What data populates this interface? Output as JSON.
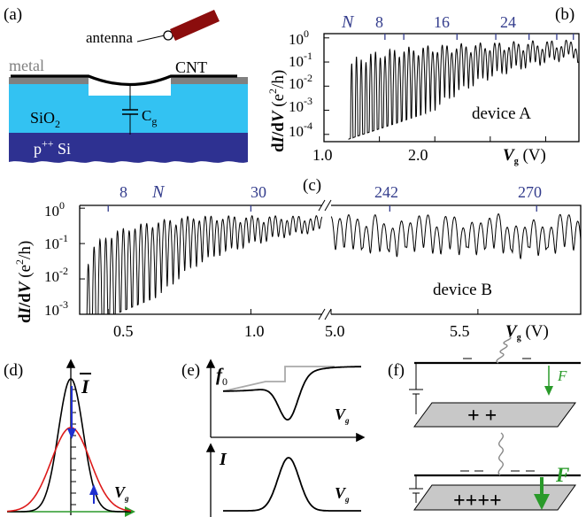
{
  "panels": {
    "a": {
      "label": "(a)",
      "antenna": "antenna",
      "metal": "metal",
      "cnt": "CNT",
      "sio2": "SiO",
      "sio2_sub": "2",
      "si": "p",
      "si_sup": "++",
      "si_tail": " Si",
      "cg": "C",
      "cg_sub": "g",
      "colors": {
        "sio2": "#33c2f2",
        "si": "#2e3191",
        "metal": "#808080",
        "antenna": "#8b0d0d"
      }
    },
    "b": {
      "label": "(b)",
      "device": "device A",
      "n_label": "N",
      "top_ticks": [
        "8",
        "16",
        "24"
      ],
      "x_ticks": [
        "1.0",
        "2.0"
      ],
      "y_ticks": [
        "10",
        "10",
        "10",
        "10",
        "10"
      ],
      "y_exps": [
        "0",
        "-1",
        "-2",
        "-3",
        "-4"
      ]
    },
    "c": {
      "label": "(c)",
      "device": "device B",
      "n_label": "N",
      "top_ticks": [
        "8",
        "30",
        "242",
        "270"
      ],
      "x_ticks": [
        "0.5",
        "1.0",
        "5.0",
        "5.5"
      ],
      "y_ticks": [
        "10",
        "10",
        "10",
        "10"
      ],
      "y_exps": [
        "0",
        "-1",
        "-2",
        "-3"
      ]
    },
    "ylabel": {
      "a": "d",
      "b": "I",
      "c": "/d",
      "d": "V",
      "e": " (e",
      "f": "2",
      "g": "/h)"
    },
    "xlabel": {
      "v": "V",
      "g": "g",
      "unit": " (V)"
    },
    "d": {
      "label": "(d)",
      "ibar": "I",
      "vg": "V",
      "vg_sub": "g"
    },
    "e": {
      "label": "(e)",
      "f0": "f",
      "f0_sub": "0",
      "i": "I",
      "vg": "V",
      "vg_sub": "g"
    },
    "f": {
      "label": "(f)",
      "force": "F",
      "force2": "F",
      "signs_top": "+ +",
      "signs_bottom": "++++"
    }
  },
  "chart_data": [
    {
      "type": "line",
      "panel": "b",
      "xlabel": "Vg (V)",
      "ylabel": "dI/dV (e^2/h)",
      "xlim": [
        1.0,
        3.3
      ],
      "ylim": [
        5e-05,
        1.5
      ],
      "yscale": "log",
      "top_axis": {
        "label": "N",
        "ticks": [
          {
            "label": "8",
            "x": 1.55
          },
          {
            "label": "16",
            "x": 2.2
          },
          {
            "label": "24",
            "x": 2.85
          }
        ]
      },
      "description_series": [
        {
          "name": "device A",
          "peaks_x_range": [
            1.25,
            3.3
          ],
          "peak_values_range": [
            0.05,
            0.9
          ],
          "valley_values_range": [
            0.0001,
            0.2
          ]
        }
      ]
    },
    {
      "type": "line",
      "panel": "c",
      "xlabel": "Vg (V)",
      "ylabel": "dI/dV (e^2/h)",
      "xlim": [
        [
          0.4,
          1.25
        ],
        [
          5.0,
          5.85
        ]
      ],
      "ylim": [
        0.001,
        1.2
      ],
      "yscale": "log",
      "top_axis": {
        "label": "N",
        "ticks": [
          {
            "label": "8",
            "x": 0.5
          },
          {
            "label": "30",
            "x": 1.0
          },
          {
            "label": "242",
            "x": 5.2
          },
          {
            "label": "270",
            "x": 5.7
          }
        ]
      },
      "description_series": [
        {
          "name": "device B",
          "peaks_x_range": [
            0.42,
            5.85
          ],
          "peak_values_range": [
            0.005,
            0.7
          ],
          "valley_values_range": [
            0.001,
            0.2
          ]
        }
      ]
    }
  ]
}
